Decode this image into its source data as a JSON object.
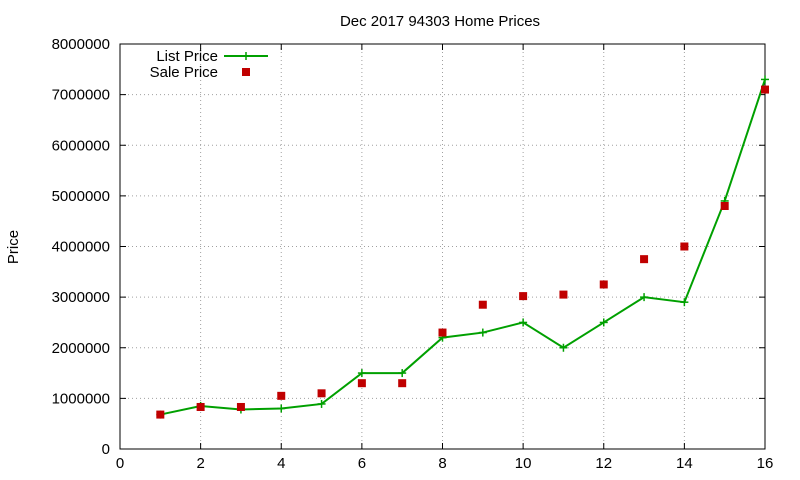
{
  "chart_data": {
    "type": "line",
    "title": "Dec 2017 94303 Home Prices",
    "xlabel": "",
    "ylabel": "Price",
    "xlim": [
      0,
      16
    ],
    "ylim": [
      0,
      8000000
    ],
    "xticks": [
      0,
      2,
      4,
      6,
      8,
      10,
      12,
      14,
      16
    ],
    "yticks": [
      0,
      1000000,
      2000000,
      3000000,
      4000000,
      5000000,
      6000000,
      7000000,
      8000000
    ],
    "grid": true,
    "legend_position": "top-left",
    "series": [
      {
        "name": "List Price",
        "style": "line-with-plus-markers",
        "color": "#00a000",
        "x": [
          1,
          2,
          3,
          4,
          5,
          6,
          7,
          8,
          9,
          10,
          11,
          12,
          13,
          14,
          15,
          16
        ],
        "values": [
          680000,
          850000,
          780000,
          800000,
          890000,
          1500000,
          1500000,
          2200000,
          2300000,
          2500000,
          2000000,
          2500000,
          3000000,
          2900000,
          4900000,
          7300000
        ]
      },
      {
        "name": "Sale Price",
        "style": "square-points",
        "color": "#c00000",
        "x": [
          1,
          2,
          3,
          4,
          5,
          6,
          7,
          8,
          9,
          10,
          11,
          12,
          13,
          14,
          15,
          16
        ],
        "values": [
          680000,
          830000,
          830000,
          1050000,
          1100000,
          1300000,
          1300000,
          2300000,
          2850000,
          3020000,
          3050000,
          3250000,
          3750000,
          4000000,
          4800000,
          7100000
        ]
      }
    ]
  }
}
